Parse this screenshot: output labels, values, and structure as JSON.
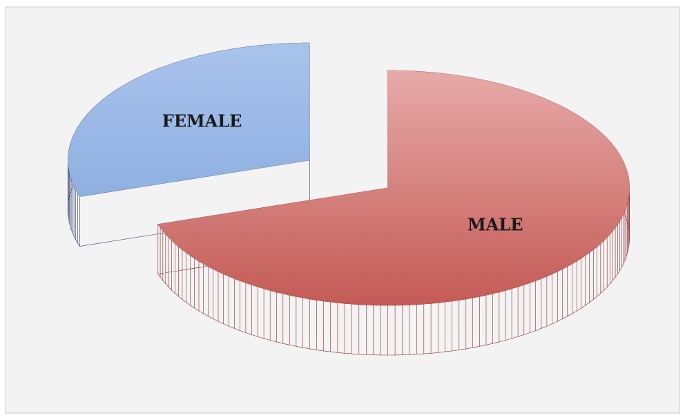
{
  "chart_data": {
    "type": "pie",
    "categories": [
      "MALE",
      "FEMALE"
    ],
    "values": [
      70,
      30
    ],
    "colors": [
      "#c96a66",
      "#9dbbe8"
    ],
    "side_colors": [
      "#8a2c2a",
      "#2e3d66"
    ]
  }
}
